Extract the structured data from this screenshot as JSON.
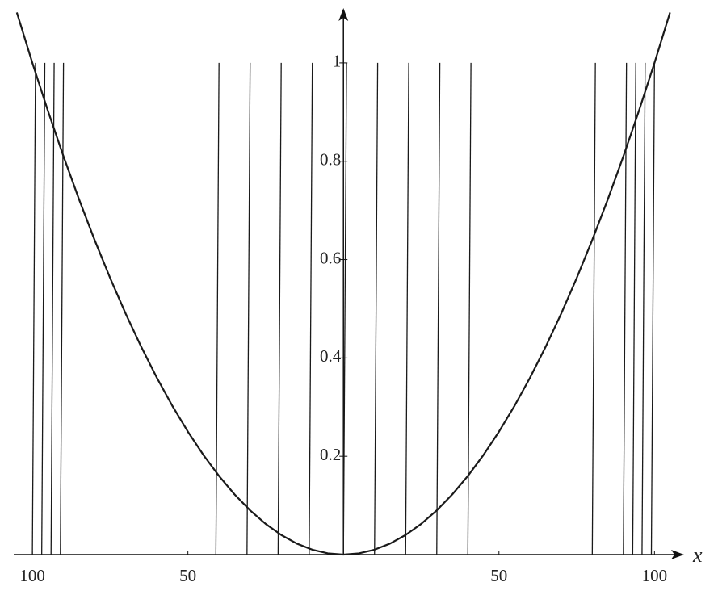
{
  "chart_data": {
    "type": "line",
    "x_label": "x",
    "xlim": [
      -106,
      109
    ],
    "ylim": [
      0,
      1.1
    ],
    "xticks": [
      {
        "value": -100,
        "label": "100"
      },
      {
        "value": -50,
        "label": "50"
      },
      50,
      100
    ],
    "yticks": [
      0.2,
      0.4,
      0.6,
      0.8,
      1
    ],
    "color": "#1a1a1a",
    "series": [
      {
        "x": [
          -105,
          -100,
          -95,
          -90,
          -85,
          -80,
          -75,
          -70,
          -65,
          -60,
          -55,
          -50,
          -45,
          -40,
          -35,
          -30,
          -25,
          -20,
          -15,
          -10,
          -5,
          0,
          5,
          10,
          15,
          20,
          25,
          30,
          35,
          40,
          45,
          50,
          55,
          60,
          65,
          70,
          75,
          80,
          85,
          90,
          95,
          100,
          105
        ],
        "values": [
          1.1025,
          1,
          0.9025,
          0.81,
          0.7225,
          0.64,
          0.5625,
          0.49,
          0.4225,
          0.36,
          0.3025,
          0.25,
          0.2025,
          0.16,
          0.1225,
          0.09,
          0.0625,
          0.04,
          0.0225,
          0.01,
          0.0025,
          0,
          0.0025,
          0.01,
          0.0225,
          0.04,
          0.0625,
          0.09,
          0.1225,
          0.16,
          0.2025,
          0.25,
          0.3025,
          0.36,
          0.4225,
          0.49,
          0.5625,
          0.64,
          0.7225,
          0.81,
          0.9025,
          1,
          1.1025
        ]
      },
      {
        "x": [
          -100,
          -99
        ],
        "values": [
          0,
          1
        ]
      },
      {
        "x": [
          -97,
          -96
        ],
        "values": [
          0,
          1
        ]
      },
      {
        "x": [
          -94,
          -93
        ],
        "values": [
          0,
          1
        ]
      },
      {
        "x": [
          -91,
          -90
        ],
        "values": [
          0,
          1
        ]
      },
      {
        "x": [
          -41,
          -40
        ],
        "values": [
          0,
          1
        ]
      },
      {
        "x": [
          -31,
          -30
        ],
        "values": [
          0,
          1
        ]
      },
      {
        "x": [
          -21,
          -20
        ],
        "values": [
          0,
          1
        ]
      },
      {
        "x": [
          -11,
          -10
        ],
        "values": [
          0,
          1
        ]
      },
      {
        "x": [
          0,
          1
        ],
        "values": [
          0,
          1
        ]
      },
      {
        "x": [
          10,
          11
        ],
        "values": [
          0,
          1
        ]
      },
      {
        "x": [
          20,
          21
        ],
        "values": [
          0,
          1
        ]
      },
      {
        "x": [
          30,
          31
        ],
        "values": [
          0,
          1
        ]
      },
      {
        "x": [
          40,
          41
        ],
        "values": [
          0,
          1
        ]
      },
      {
        "x": [
          80,
          81
        ],
        "values": [
          0,
          1
        ]
      },
      {
        "x": [
          90,
          91
        ],
        "values": [
          0,
          1
        ]
      },
      {
        "x": [
          93,
          94
        ],
        "values": [
          0,
          1
        ]
      },
      {
        "x": [
          96,
          97
        ],
        "values": [
          0,
          1
        ]
      },
      {
        "x": [
          99,
          100
        ],
        "values": [
          0,
          1
        ]
      }
    ]
  }
}
